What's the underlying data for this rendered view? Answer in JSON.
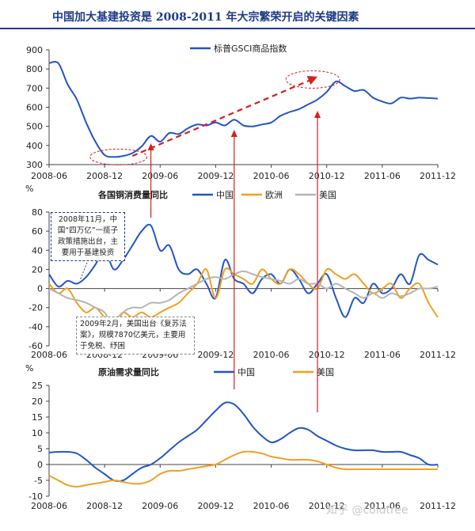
{
  "title": "中国加大基建投资是 2008-2011 年大宗繁荣开启的关键因素",
  "watermark": "知乎 @coldtree",
  "colors": {
    "china": "#2355c4",
    "eu": "#f0a020",
    "us": "#b5b5b5",
    "arrow": "#d42020",
    "grid": "#e4e4e4",
    "axis": "#444444"
  },
  "annotations": {
    "note1": "2008年11月，中国“四万亿”一揽子政策措施出台，主要用于基建投资",
    "note2": "2009年2月，美国出台《复苏法案》，规模7870亿美元，主要用于免税、纾困"
  },
  "chart_data": [
    {
      "id": "gsci",
      "type": "line",
      "title": "",
      "ylim": [
        300,
        900
      ],
      "yticks": [
        300,
        400,
        500,
        600,
        700,
        800,
        900
      ],
      "xlim": [
        0,
        42
      ],
      "xticks": [
        0,
        6,
        12,
        18,
        24,
        30,
        36,
        42
      ],
      "xticklabels": [
        "2008-06",
        "2008-12",
        "2009-06",
        "2009-12",
        "2010-06",
        "2010-12",
        "2011-06",
        "2011-12"
      ],
      "legend": [
        "标普GSCI商品指数"
      ],
      "series": [
        {
          "name": "标普GSCI商品指数",
          "color": "#2355c4",
          "x": [
            0,
            1,
            2,
            3,
            4,
            5,
            6,
            7,
            8,
            9,
            10,
            11,
            12,
            13,
            14,
            15,
            16,
            17,
            18,
            19,
            20,
            21,
            22,
            23,
            24,
            25,
            26,
            27,
            28,
            29,
            30,
            31,
            32,
            33,
            34,
            35,
            36,
            37,
            38,
            39,
            40,
            41,
            42
          ],
          "values": [
            830,
            830,
            720,
            640,
            520,
            420,
            350,
            340,
            345,
            360,
            395,
            450,
            420,
            465,
            460,
            490,
            510,
            505,
            520,
            505,
            535,
            505,
            500,
            510,
            520,
            555,
            575,
            590,
            615,
            640,
            680,
            735,
            710,
            685,
            690,
            650,
            630,
            620,
            650,
            645,
            650,
            648,
            645
          ]
        }
      ],
      "trend_arrow": {
        "from": [
          9,
          345
        ],
        "to": [
          29,
          760
        ]
      },
      "ellipses": [
        {
          "center": [
            7.5,
            340
          ]
        },
        {
          "center": [
            28.5,
            745
          ]
        }
      ]
    },
    {
      "id": "copper",
      "type": "line",
      "title": "各国铜消费量同比",
      "yunit": "%",
      "ylim": [
        -60,
        80
      ],
      "yticks": [
        -60,
        -40,
        -20,
        0,
        20,
        40,
        60,
        80
      ],
      "xlim": [
        0,
        42
      ],
      "xticks": [
        0,
        6,
        12,
        18,
        24,
        30,
        36,
        42
      ],
      "xticklabels": [
        "2008-06",
        "2008-12",
        "2009-06",
        "2009-12",
        "2010-06",
        "2010-12",
        "2011-06",
        "2011-12"
      ],
      "legend": [
        "中国",
        "欧洲",
        "美国"
      ],
      "series": [
        {
          "name": "中国",
          "color": "#2355c4",
          "x": [
            0,
            1,
            2,
            3,
            4,
            5,
            6,
            7,
            8,
            9,
            10,
            11,
            12,
            13,
            14,
            15,
            16,
            17,
            18,
            19,
            20,
            21,
            22,
            23,
            24,
            25,
            26,
            27,
            28,
            29,
            30,
            31,
            32,
            33,
            34,
            35,
            36,
            37,
            38,
            39,
            40,
            41,
            42
          ],
          "values": [
            15,
            2,
            8,
            5,
            12,
            25,
            40,
            20,
            30,
            45,
            60,
            66,
            40,
            45,
            20,
            15,
            20,
            5,
            -10,
            30,
            10,
            5,
            -5,
            10,
            15,
            5,
            20,
            10,
            -5,
            5,
            15,
            -10,
            -30,
            -10,
            -15,
            5,
            -5,
            0,
            15,
            5,
            35,
            30,
            25
          ]
        },
        {
          "name": "欧洲",
          "color": "#f0a020",
          "x": [
            0,
            1,
            2,
            3,
            4,
            5,
            6,
            7,
            8,
            9,
            10,
            11,
            12,
            13,
            14,
            15,
            16,
            17,
            18,
            19,
            20,
            21,
            22,
            23,
            24,
            25,
            26,
            27,
            28,
            29,
            30,
            31,
            32,
            33,
            34,
            35,
            36,
            37,
            38,
            39,
            40,
            41,
            42
          ],
          "values": [
            5,
            -5,
            0,
            -15,
            -25,
            -20,
            -30,
            -35,
            -25,
            -30,
            -25,
            -30,
            -25,
            -20,
            -15,
            -5,
            5,
            20,
            -10,
            20,
            15,
            10,
            5,
            20,
            10,
            5,
            20,
            15,
            5,
            0,
            20,
            15,
            10,
            15,
            5,
            -5,
            0,
            5,
            -10,
            0,
            5,
            -15,
            -30
          ]
        },
        {
          "name": "美国",
          "color": "#b5b5b5",
          "x": [
            0,
            1,
            2,
            3,
            4,
            5,
            6,
            7,
            8,
            9,
            10,
            11,
            12,
            13,
            14,
            15,
            16,
            17,
            18,
            19,
            20,
            21,
            22,
            23,
            24,
            25,
            26,
            27,
            28,
            29,
            30,
            31,
            32,
            33,
            34,
            35,
            36,
            37,
            38,
            39,
            40,
            41,
            42
          ],
          "values": [
            0,
            -5,
            -10,
            -12,
            -15,
            -20,
            -25,
            -40,
            -25,
            -20,
            -20,
            -15,
            -15,
            -12,
            -5,
            0,
            5,
            10,
            12,
            10,
            15,
            18,
            15,
            12,
            10,
            8,
            5,
            10,
            5,
            5,
            0,
            5,
            0,
            -5,
            -10,
            -5,
            -10,
            -5,
            -8,
            -5,
            0,
            0,
            2
          ]
        }
      ]
    },
    {
      "id": "oil",
      "type": "line",
      "title": "原油需求量同比",
      "yunit": "%",
      "ylim": [
        -10,
        25
      ],
      "yticks": [
        -10,
        -5,
        0,
        5,
        10,
        15,
        20,
        25
      ],
      "xlim": [
        0,
        42
      ],
      "xticks": [
        0,
        6,
        12,
        18,
        24,
        30,
        36,
        42
      ],
      "xticklabels": [
        "2008-06",
        "2008-12",
        "2009-06",
        "2009-12",
        "2010-06",
        "2010-12",
        "2011-06",
        "2011-12"
      ],
      "legend": [
        "中国",
        "美国"
      ],
      "series": [
        {
          "name": "中国",
          "color": "#2355c4",
          "x": [
            0,
            1,
            2,
            3,
            4,
            5,
            6,
            7,
            8,
            9,
            10,
            11,
            12,
            13,
            14,
            15,
            16,
            17,
            18,
            19,
            20,
            21,
            22,
            23,
            24,
            25,
            26,
            27,
            28,
            29,
            30,
            31,
            32,
            33,
            34,
            35,
            36,
            37,
            38,
            39,
            40,
            41,
            42
          ],
          "values": [
            3.8,
            4,
            4,
            3.5,
            1.5,
            -1,
            -3,
            -5,
            -5,
            -3,
            -1,
            0,
            2,
            4.5,
            7,
            9,
            11,
            14,
            17,
            19.5,
            19,
            16,
            12,
            9,
            7,
            8,
            10,
            11.5,
            11,
            9,
            7.5,
            6,
            5,
            4.5,
            4.5,
            4.5,
            4,
            4,
            4,
            3,
            2,
            0,
            0
          ]
        },
        {
          "name": "美国",
          "color": "#f0a020",
          "x": [
            0,
            1,
            2,
            3,
            4,
            5,
            6,
            7,
            8,
            9,
            10,
            11,
            12,
            13,
            14,
            15,
            16,
            17,
            18,
            19,
            20,
            21,
            22,
            23,
            24,
            25,
            26,
            27,
            28,
            29,
            30,
            31,
            32,
            33,
            34,
            35,
            36,
            37,
            38,
            39,
            40,
            41,
            42
          ],
          "values": [
            -3.5,
            -5,
            -6.5,
            -7,
            -6.5,
            -6,
            -5.5,
            -5,
            -5.5,
            -6,
            -6,
            -5,
            -3,
            -2,
            -2,
            -1.5,
            -1,
            -0.5,
            0,
            1.5,
            3,
            4,
            4,
            3.5,
            2.5,
            2,
            1.5,
            1.5,
            1.5,
            1,
            0,
            -1,
            -1.5,
            -1.5,
            -1.5,
            -1.5,
            -1.5,
            -1.5,
            -1.5,
            -1.5,
            -1.5,
            -1.5,
            -1.5
          ]
        }
      ]
    }
  ]
}
